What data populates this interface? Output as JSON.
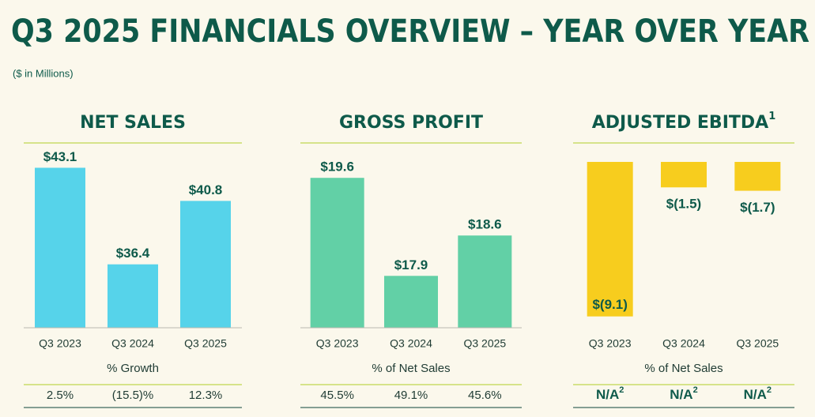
{
  "title": "Q3 2025 FINANCIALS OVERVIEW – YEAR OVER YEAR",
  "subtitle": "($ in Millions)",
  "chart_data": [
    {
      "type": "bar",
      "title": "NET SALES",
      "categories": [
        "Q3 2023",
        "Q3 2024",
        "Q3 2025"
      ],
      "values": [
        43.1,
        36.4,
        40.8
      ],
      "value_labels": [
        "$43.1",
        "$36.4",
        "$40.8"
      ],
      "color": "#56d3ea",
      "ylim": [
        32,
        44
      ],
      "footer_label": "% Growth",
      "footer_values": [
        "2.5%",
        "(15.5)%",
        "12.3%"
      ]
    },
    {
      "type": "bar",
      "title": "GROSS PROFIT",
      "categories": [
        "Q3 2023",
        "Q3 2024",
        "Q3 2025"
      ],
      "values": [
        19.6,
        17.9,
        18.6
      ],
      "value_labels": [
        "$19.6",
        "$17.9",
        "$18.6"
      ],
      "color": "#62d0a6",
      "ylim": [
        17,
        20
      ],
      "footer_label": "% of Net Sales",
      "footer_values": [
        "45.5%",
        "49.1%",
        "45.6%"
      ]
    },
    {
      "type": "bar",
      "title": "ADJUSTED EBITDA",
      "title_note": "1",
      "categories": [
        "Q3 2023",
        "Q3 2024",
        "Q3 2025"
      ],
      "values": [
        -9.1,
        -1.5,
        -1.7
      ],
      "value_labels": [
        "$(9.1)",
        "$(1.5)",
        "$(1.7)"
      ],
      "color": "#f7cd1e",
      "ylim": [
        -10,
        0
      ],
      "footer_label": "% of Net Sales",
      "footer_values": [
        "N/A",
        "N/A",
        "N/A"
      ],
      "footer_note": "2"
    }
  ]
}
